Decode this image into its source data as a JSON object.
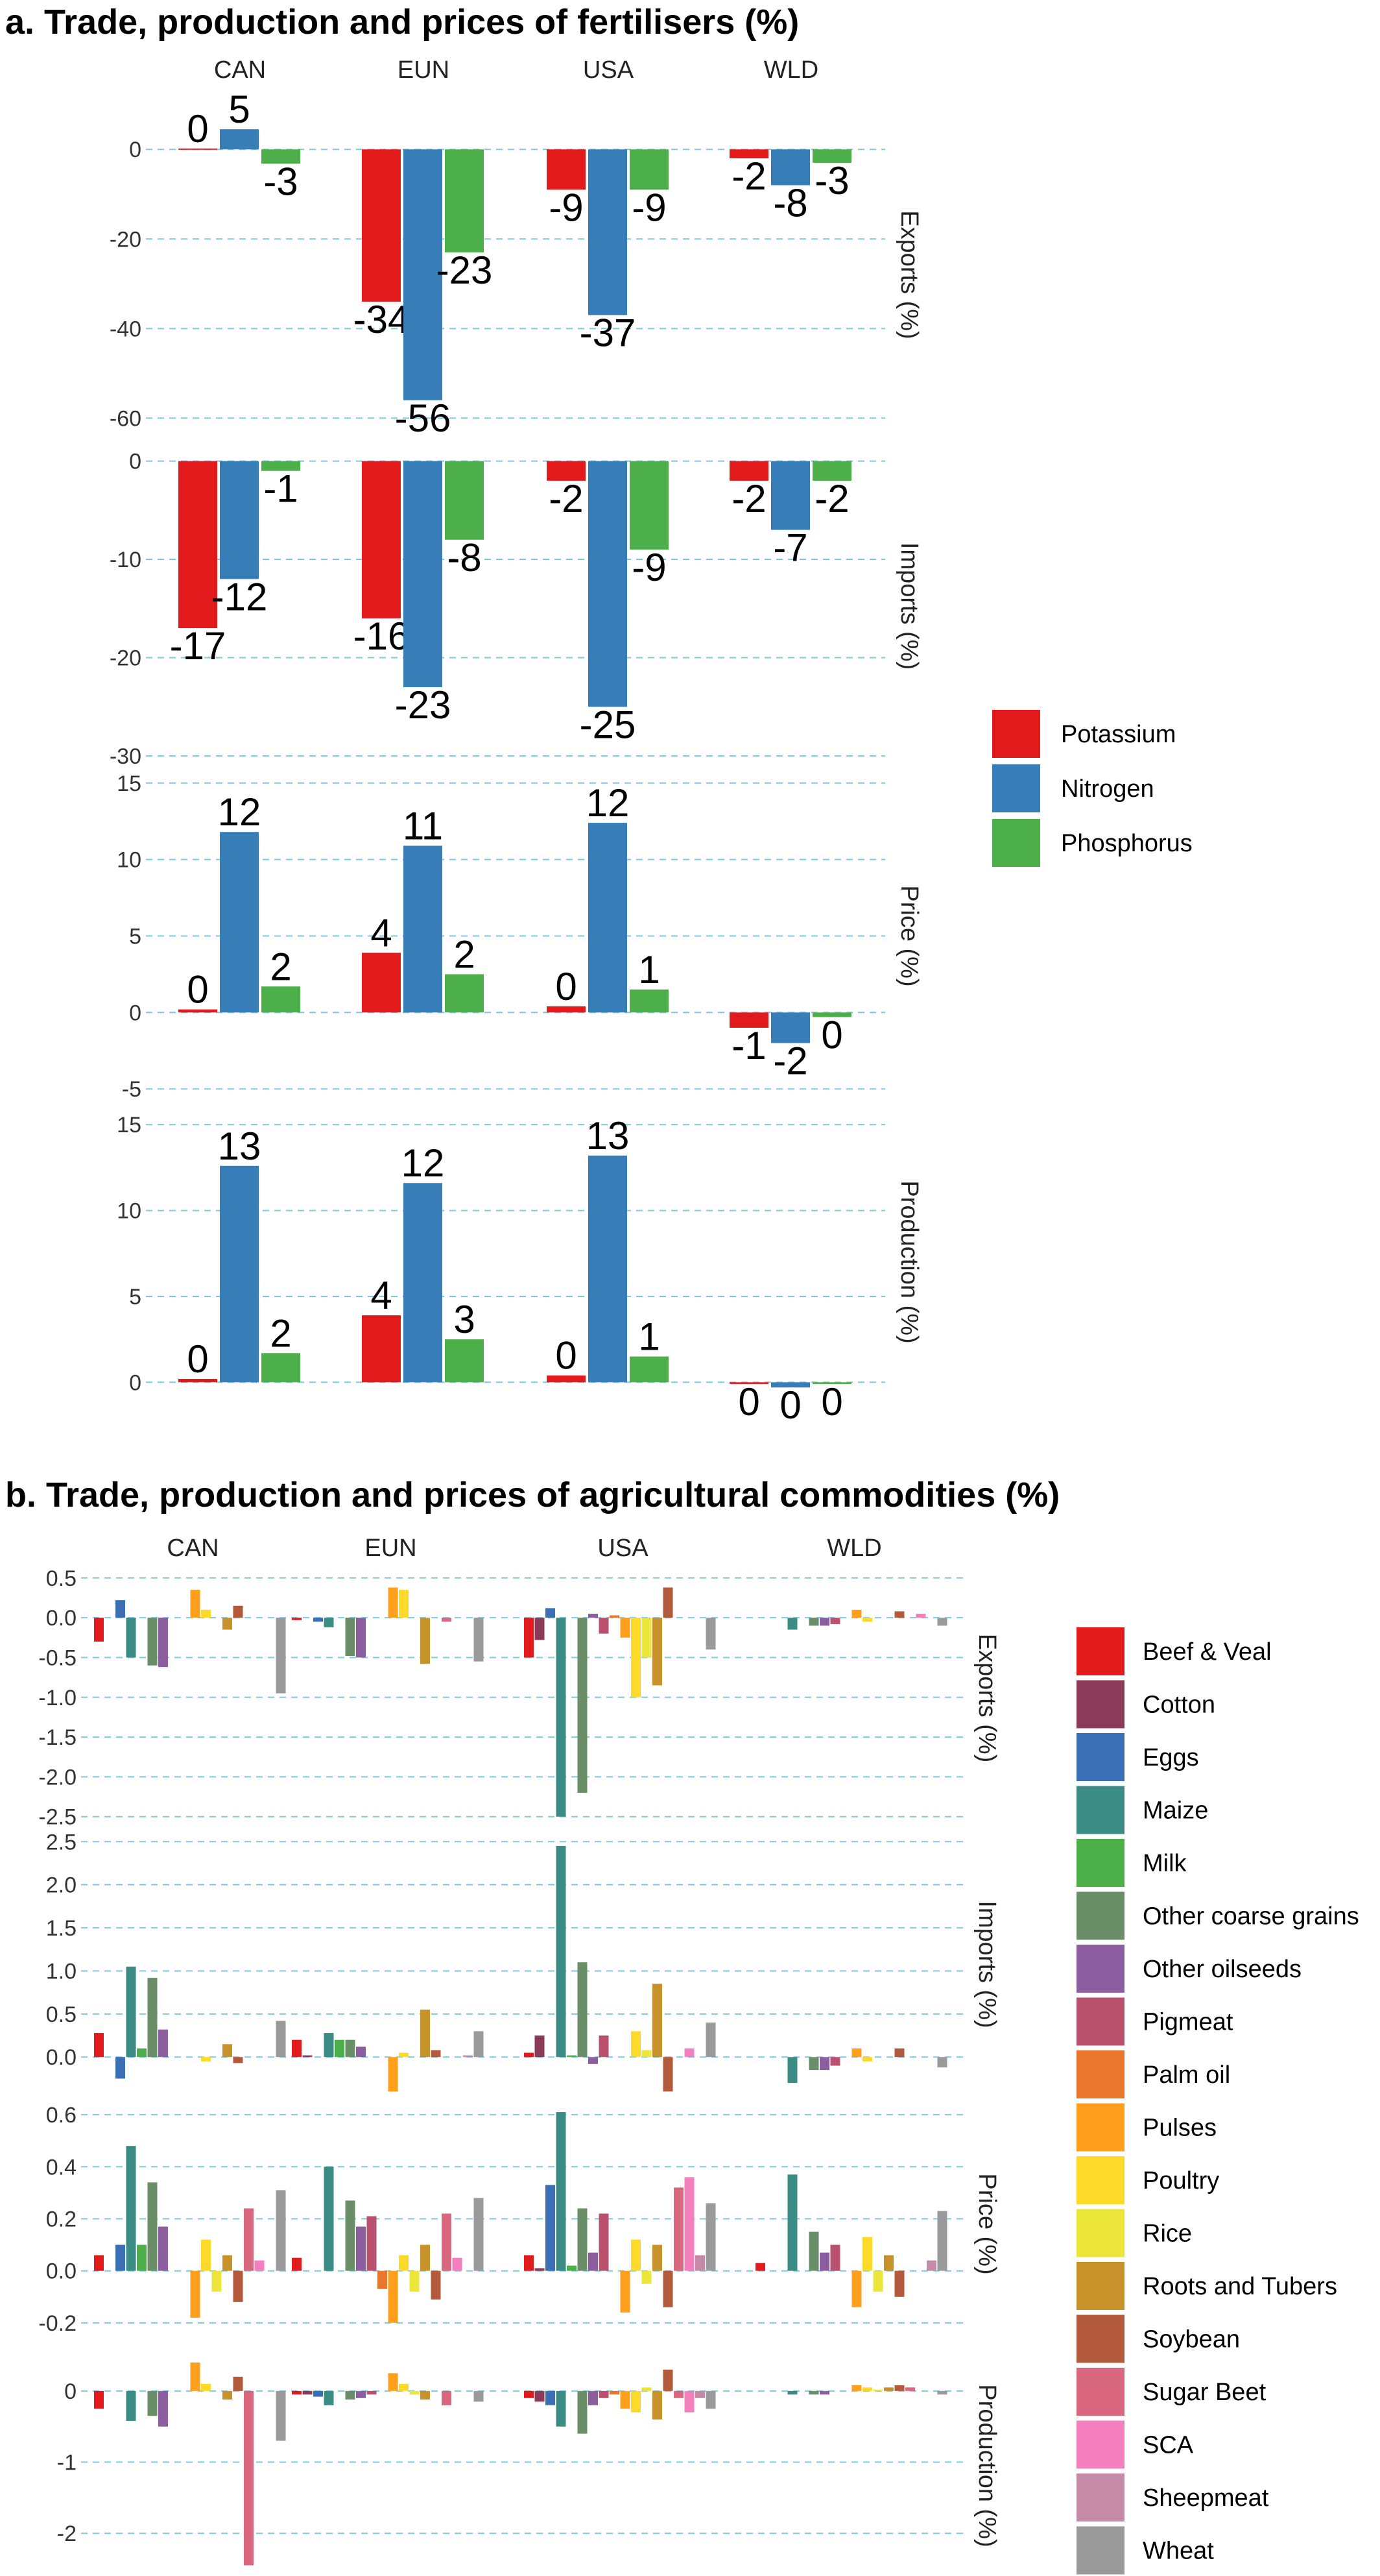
{
  "legend_a": [
    {
      "name": "Potassium",
      "color": "#e31a1c"
    },
    {
      "name": "Nitrogen",
      "color": "#377eb8"
    },
    {
      "name": "Phosphorus",
      "color": "#4daf4a"
    }
  ],
  "legend_b": [
    {
      "name": "Beef & Veal",
      "color": "#e31a1c"
    },
    {
      "name": "Cotton",
      "color": "#8b3a5a"
    },
    {
      "name": "Eggs",
      "color": "#3a6fb5"
    },
    {
      "name": "Maize",
      "color": "#3a8c84"
    },
    {
      "name": "Milk",
      "color": "#4daf4a"
    },
    {
      "name": "Other coarse grains",
      "color": "#6a8f68"
    },
    {
      "name": "Other oilseeds",
      "color": "#8c5ea0"
    },
    {
      "name": "Pigmeat",
      "color": "#b8506e"
    },
    {
      "name": "Palm oil",
      "color": "#e8762c"
    },
    {
      "name": "Pulses",
      "color": "#ff9f1c"
    },
    {
      "name": "Poultry",
      "color": "#fdd92a"
    },
    {
      "name": "Rice",
      "color": "#ece63a"
    },
    {
      "name": "Roots and Tubers",
      "color": "#c8922a"
    },
    {
      "name": "Soybean",
      "color": "#b35a3c"
    },
    {
      "name": "Sugar Beet",
      "color": "#d9677d"
    },
    {
      "name": "SCA",
      "color": "#f47fbf"
    },
    {
      "name": "Sheepmeat",
      "color": "#c48aa6"
    },
    {
      "name": "Wheat",
      "color": "#9a9a9a"
    }
  ],
  "chart_data": [
    {
      "type": "bar",
      "title": "a. Trade, production and prices of fertilisers (%)",
      "facets": [
        "CAN",
        "EUN",
        "USA",
        "WLD"
      ],
      "series_names": [
        "Potassium",
        "Nitrogen",
        "Phosphorus"
      ],
      "panels": [
        {
          "ylabel": "Exports (%)",
          "ylim": [
            -64,
            8
          ],
          "ticks": [
            0,
            -20,
            -40,
            -60
          ],
          "tick_labels": [
            "0",
            "-20",
            "-40",
            "-60"
          ],
          "values": [
            [
              0.2,
              4.5,
              -3.2
            ],
            [
              -34,
              -56,
              -23
            ],
            [
              -9,
              -37,
              -9
            ],
            [
              -2,
              -8,
              -3
            ]
          ],
          "labels": [
            [
              "0",
              "5",
              "-3"
            ],
            [
              "-34",
              "-56",
              "-23"
            ],
            [
              "-9",
              "-37",
              "-9"
            ],
            [
              "-2",
              "-8",
              "-3"
            ]
          ]
        },
        {
          "ylabel": "Imports (%)",
          "ylim": [
            -30,
            0.5
          ],
          "ticks": [
            0,
            -10,
            -20,
            -30
          ],
          "tick_labels": [
            "0",
            "-10",
            "-20",
            "-30"
          ],
          "values": [
            [
              -17,
              -12,
              -1
            ],
            [
              -16,
              -23,
              -8
            ],
            [
              -2,
              -25,
              -9
            ],
            [
              -2,
              -7,
              -2
            ]
          ],
          "labels": [
            [
              "-17",
              "-12",
              "-1"
            ],
            [
              "-16",
              "-23",
              "-8"
            ],
            [
              "-2",
              "-25",
              "-9"
            ],
            [
              "-2",
              "-7",
              "-2"
            ]
          ]
        },
        {
          "ylabel": "Price (%)",
          "ylim": [
            -5.5,
            15.5
          ],
          "ticks": [
            15,
            10,
            5,
            0,
            -5
          ],
          "tick_labels": [
            "15",
            "10",
            "5",
            "0",
            "-5"
          ],
          "values": [
            [
              0.2,
              11.8,
              1.7
            ],
            [
              3.9,
              10.9,
              2.5
            ],
            [
              0.4,
              12.4,
              1.5
            ],
            [
              -1,
              -2,
              -0.3
            ]
          ],
          "labels": [
            [
              "0",
              "12",
              "2"
            ],
            [
              "4",
              "11",
              "2"
            ],
            [
              "0",
              "12",
              "1"
            ],
            [
              "-1",
              "-2",
              "0"
            ]
          ]
        },
        {
          "ylabel": "Production (%)",
          "ylim": [
            -1.5,
            15.5
          ],
          "ticks": [
            15,
            10,
            5,
            0
          ],
          "tick_labels": [
            "15",
            "10",
            "5",
            "0"
          ],
          "values": [
            [
              0.2,
              12.6,
              1.7
            ],
            [
              3.9,
              11.6,
              2.5
            ],
            [
              0.4,
              13.2,
              1.5
            ],
            [
              -0.1,
              -0.3,
              -0.1
            ]
          ],
          "labels": [
            [
              "0",
              "13",
              "2"
            ],
            [
              "4",
              "12",
              "3"
            ],
            [
              "0",
              "13",
              "1"
            ],
            [
              "0",
              "0",
              "0"
            ]
          ]
        }
      ]
    },
    {
      "type": "bar",
      "title": "b. Trade, production and prices of agricultural commodities (%)",
      "facets": [
        "CAN",
        "EUN",
        "USA",
        "WLD"
      ],
      "series_names": [
        "Beef & Veal",
        "Cotton",
        "Eggs",
        "Maize",
        "Milk",
        "Other coarse grains",
        "Other oilseeds",
        "Pigmeat",
        "Palm oil",
        "Pulses",
        "Poultry",
        "Rice",
        "Roots and Tubers",
        "Soybean",
        "Sugar Beet",
        "SCA",
        "Sheepmeat",
        "Wheat"
      ],
      "panels": [
        {
          "ylabel": "Exports (%)",
          "ylim": [
            -2.6,
            0.58
          ],
          "ticks": [
            0.5,
            0.0,
            -0.5,
            -1.0,
            -1.5,
            -2.0,
            -2.5
          ],
          "tick_labels": [
            "0.5",
            "0.0",
            "-0.5",
            "-1.0",
            "-1.5",
            "-2.0",
            "-2.5"
          ],
          "values": [
            [
              -0.3,
              0,
              0.22,
              -0.5,
              0,
              -0.6,
              -0.62,
              0,
              0,
              0.35,
              0.1,
              0,
              -0.15,
              0.15,
              0,
              0,
              0,
              -0.95
            ],
            [
              -0.03,
              0,
              -0.05,
              -0.12,
              0,
              -0.48,
              -0.5,
              0,
              0,
              0.38,
              0.35,
              0,
              -0.58,
              0,
              -0.05,
              0,
              0,
              -0.55
            ],
            [
              -0.5,
              -0.28,
              0.12,
              -2.5,
              0,
              -2.2,
              0.05,
              -0.2,
              0.03,
              -0.25,
              -1.0,
              -0.5,
              -0.85,
              0.38,
              0,
              0,
              0,
              -0.4
            ],
            [
              0,
              0,
              0,
              -0.15,
              0,
              -0.1,
              -0.1,
              -0.08,
              0,
              0.1,
              -0.05,
              0,
              0,
              0.08,
              0,
              0.05,
              0,
              -0.1
            ]
          ]
        },
        {
          "ylabel": "Imports (%)",
          "ylim": [
            -0.45,
            2.6
          ],
          "ticks": [
            2.5,
            2.0,
            1.5,
            1.0,
            0.5,
            0.0
          ],
          "tick_labels": [
            "2.5",
            "2.0",
            "1.5",
            "1.0",
            "0.5",
            "0.0"
          ],
          "values": [
            [
              0.28,
              0,
              -0.25,
              1.05,
              0.1,
              0.92,
              0.32,
              0,
              0,
              0,
              -0.05,
              0,
              0.15,
              -0.07,
              0,
              0,
              0,
              0.42
            ],
            [
              0.2,
              0.02,
              0,
              0.28,
              0.2,
              0.2,
              0.12,
              0,
              0,
              -0.4,
              0.05,
              0,
              0.55,
              0.08,
              0,
              0,
              0.02,
              0.3
            ],
            [
              0.05,
              0.25,
              0,
              2.45,
              0.02,
              1.1,
              -0.08,
              0.25,
              0,
              0,
              0.3,
              0.08,
              0.85,
              -0.4,
              0,
              0.1,
              0,
              0.4
            ],
            [
              0,
              0,
              0,
              -0.3,
              0,
              -0.15,
              -0.15,
              -0.1,
              0,
              0.1,
              -0.05,
              0,
              0,
              0.1,
              0,
              0,
              0,
              -0.12
            ]
          ]
        },
        {
          "ylabel": "Price (%)",
          "ylim": [
            -0.3,
            0.66
          ],
          "ticks": [
            0.6,
            0.4,
            0.2,
            0.0,
            -0.2
          ],
          "tick_labels": [
            "0.6",
            "0.4",
            "0.2",
            "0.0",
            "-0.2"
          ],
          "values": [
            [
              0.06,
              0,
              0.1,
              0.48,
              0.1,
              0.34,
              0.17,
              0,
              0,
              -0.18,
              0.12,
              -0.08,
              0.06,
              -0.12,
              0.24,
              0.04,
              0,
              0.31
            ],
            [
              0.05,
              0,
              0,
              0.4,
              0,
              0.27,
              0.17,
              0.21,
              -0.07,
              -0.2,
              0.06,
              -0.08,
              0.1,
              -0.11,
              0.22,
              0.05,
              0,
              0.28
            ],
            [
              0.06,
              0.01,
              0.33,
              0.61,
              0.02,
              0.24,
              0.07,
              0.22,
              0,
              -0.16,
              0.12,
              -0.05,
              0.1,
              -0.14,
              0.32,
              0.36,
              0.06,
              0.26
            ],
            [
              0.03,
              0,
              0,
              0.37,
              0,
              0.15,
              0.07,
              0.1,
              0,
              -0.14,
              0.13,
              -0.08,
              0.06,
              -0.1,
              0,
              0,
              0.04,
              0.23
            ]
          ]
        },
        {
          "ylabel": "Production (%)",
          "ylim": [
            -2.6,
            0.5
          ],
          "ticks": [
            0,
            -1,
            -2
          ],
          "tick_labels": [
            "0",
            "-1",
            "-2"
          ],
          "values": [
            [
              -0.25,
              0,
              0,
              -0.42,
              0,
              -0.35,
              -0.5,
              0,
              0,
              0.4,
              0.1,
              0,
              -0.12,
              0.2,
              -2.45,
              0,
              0,
              -0.7
            ],
            [
              -0.05,
              -0.05,
              -0.08,
              -0.2,
              0,
              -0.12,
              -0.1,
              -0.05,
              0,
              0.25,
              0.1,
              -0.05,
              -0.12,
              0,
              -0.2,
              0,
              0,
              -0.15
            ],
            [
              -0.1,
              -0.15,
              -0.2,
              -0.5,
              0,
              -0.6,
              -0.2,
              -0.1,
              -0.05,
              -0.25,
              -0.3,
              0.05,
              -0.4,
              0.3,
              -0.1,
              -0.3,
              -0.1,
              -0.25
            ],
            [
              0,
              0,
              0,
              -0.05,
              0,
              -0.05,
              -0.05,
              0,
              0,
              0.08,
              0.05,
              0.02,
              0.05,
              0.08,
              0.05,
              0,
              0,
              -0.05
            ]
          ]
        }
      ]
    }
  ]
}
